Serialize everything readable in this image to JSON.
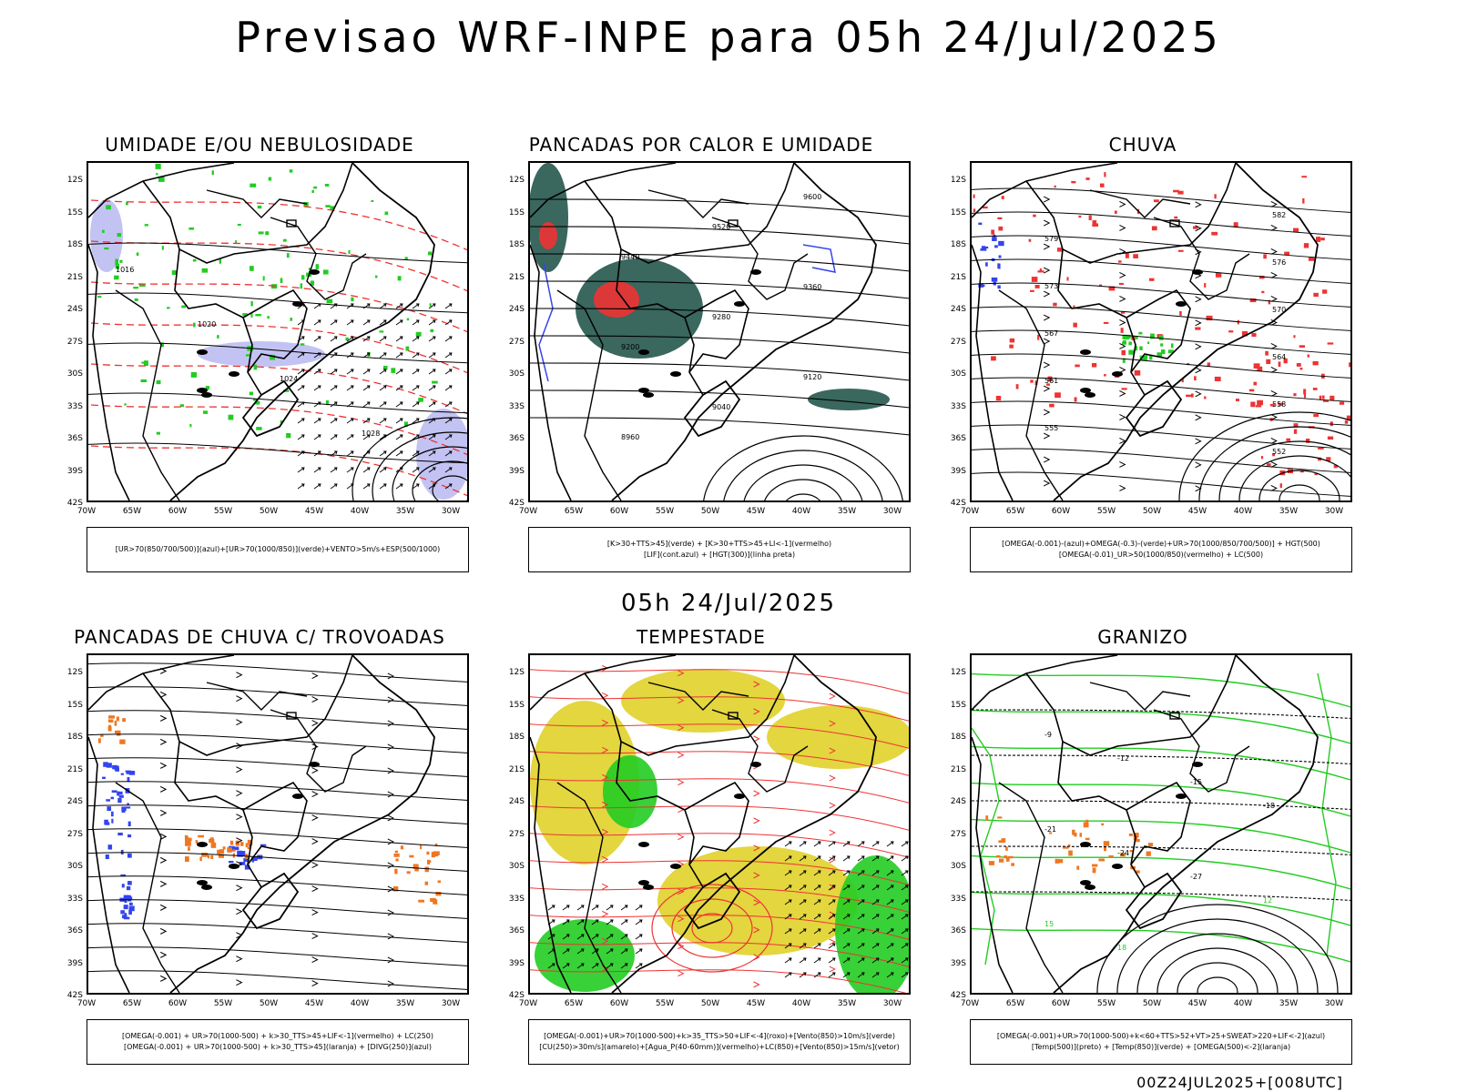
{
  "header": {
    "title": "Previsao WRF-INPE  para 05h 24/Jul/2025",
    "subtitle": "05h 24/Jul/2025",
    "footer": "00Z24JUL2025+[008UTC]"
  },
  "axes": {
    "y_labels": [
      "12S",
      "15S",
      "18S",
      "21S",
      "24S",
      "27S",
      "30S",
      "33S",
      "36S",
      "39S",
      "42S"
    ],
    "x_labels": [
      "70W",
      "65W",
      "60W",
      "55W",
      "50W",
      "45W",
      "40W",
      "35W",
      "30W"
    ]
  },
  "colors": {
    "blue": "#3344ee",
    "green": "#22cc22",
    "red": "#ee3333",
    "orange": "#ee7722",
    "yellow": "#e0d22a",
    "teal": "#2f5f55",
    "lavender": "#aaaaee"
  },
  "panels": [
    {
      "title": "UMIDADE E/OU NEBULOSIDADE",
      "legend": [
        "[UR>70(850/700/500)](azul)+[UR>70(1000/850)](verde)+VENTO>5m/s+ESP(500/1000)"
      ],
      "contour_labels": [
        "1016",
        "1020",
        "1024",
        "1028"
      ]
    },
    {
      "title": "PANCADAS POR CALOR E UMIDADE",
      "legend": [
        "[K>30+TTS>45](verde) + [K>30+TTS>45+LI<-1](vermelho)",
        "[LIF](cont.azul) + [HGT(300)](linha preta)"
      ],
      "contour_labels": [
        "9600",
        "9520",
        "9440",
        "9360",
        "9280",
        "9200",
        "9120",
        "9040",
        "8960"
      ]
    },
    {
      "title": "CHUVA",
      "legend": [
        "[OMEGA(-0.001)-(azul)+OMEGA(-0.3)-(verde)+UR>70(1000/850/700/500)] + HGT(500)",
        "[OMEGA(-0.01)_UR>50(1000/850)(vermelho) + LC(500)"
      ],
      "contour_labels": [
        "582",
        "579",
        "576",
        "573",
        "570",
        "567",
        "564",
        "561",
        "558",
        "555",
        "552"
      ]
    },
    {
      "title": "PANCADAS DE CHUVA C/ TROVOADAS",
      "legend": [
        "[OMEGA(-0.001) + UR>70(1000-500) + k>30_TTS>45+LIF<-1](vermelho) + LC(250)",
        "[OMEGA(-0.001) + UR>70(1000-500) + k>30_TTS>45](laranja) + [DIVG(250)](azul)"
      ],
      "contour_labels": []
    },
    {
      "title": "TEMPESTADE",
      "legend": [
        "[OMEGA(-0.001)+UR>70(1000-500)+k>35_TTS>50+LIF<-4](roxo)+[Vento(850)>10m/s](verde)",
        "[CU(250)>30m/s](amarelo)+[Agua_P(40-60mm)](vermelho)+LC(850)+[Vento(850)>15m/s](vetor)"
      ],
      "contour_labels": []
    },
    {
      "title": "GRANIZO",
      "legend": [
        "[OMEGA(-0.001)+UR>70(1000-500)+k<60+TTS>52+VT>25+SWEAT>220+LIF<-2](azul)",
        "[Temp(500)](preto) + [Temp(850)](verde) + [OMEGA(500)<-2](laranja)"
      ],
      "contour_labels": [
        "-9",
        "-12",
        "-15",
        "-18",
        "-21",
        "-24",
        "-27",
        "12",
        "15",
        "18"
      ]
    }
  ]
}
